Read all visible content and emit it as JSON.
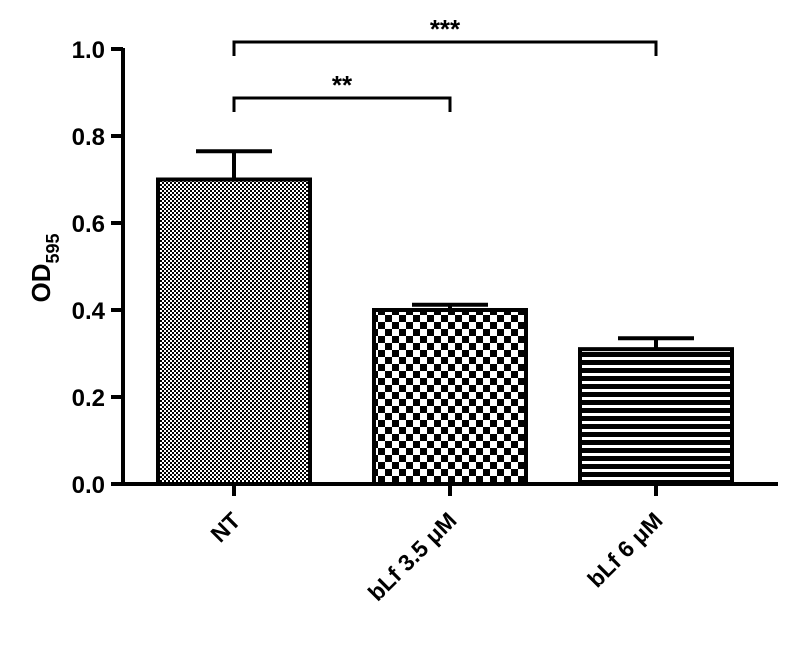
{
  "chart_data": {
    "type": "bar",
    "title": "",
    "xlabel": "",
    "ylabel": "OD",
    "ylabel_sub": "595",
    "categories": [
      "NT",
      "bLf 3.5 μM",
      "bLf 6 μM"
    ],
    "values": [
      0.7,
      0.4,
      0.31
    ],
    "errors": [
      0.065,
      0.012,
      0.025
    ],
    "ylim": [
      0,
      1.0
    ],
    "yticks": [
      "0.0",
      "0.2",
      "0.4",
      "0.6",
      "0.8",
      "1.0"
    ],
    "grid": false,
    "fill_patterns": [
      "fine-checker",
      "coarse-checker",
      "horizontal-stripes"
    ],
    "bar_color": "#000000",
    "significance": [
      {
        "from": 0,
        "to": 1,
        "label": "**"
      },
      {
        "from": 0,
        "to": 2,
        "label": "***"
      }
    ]
  }
}
